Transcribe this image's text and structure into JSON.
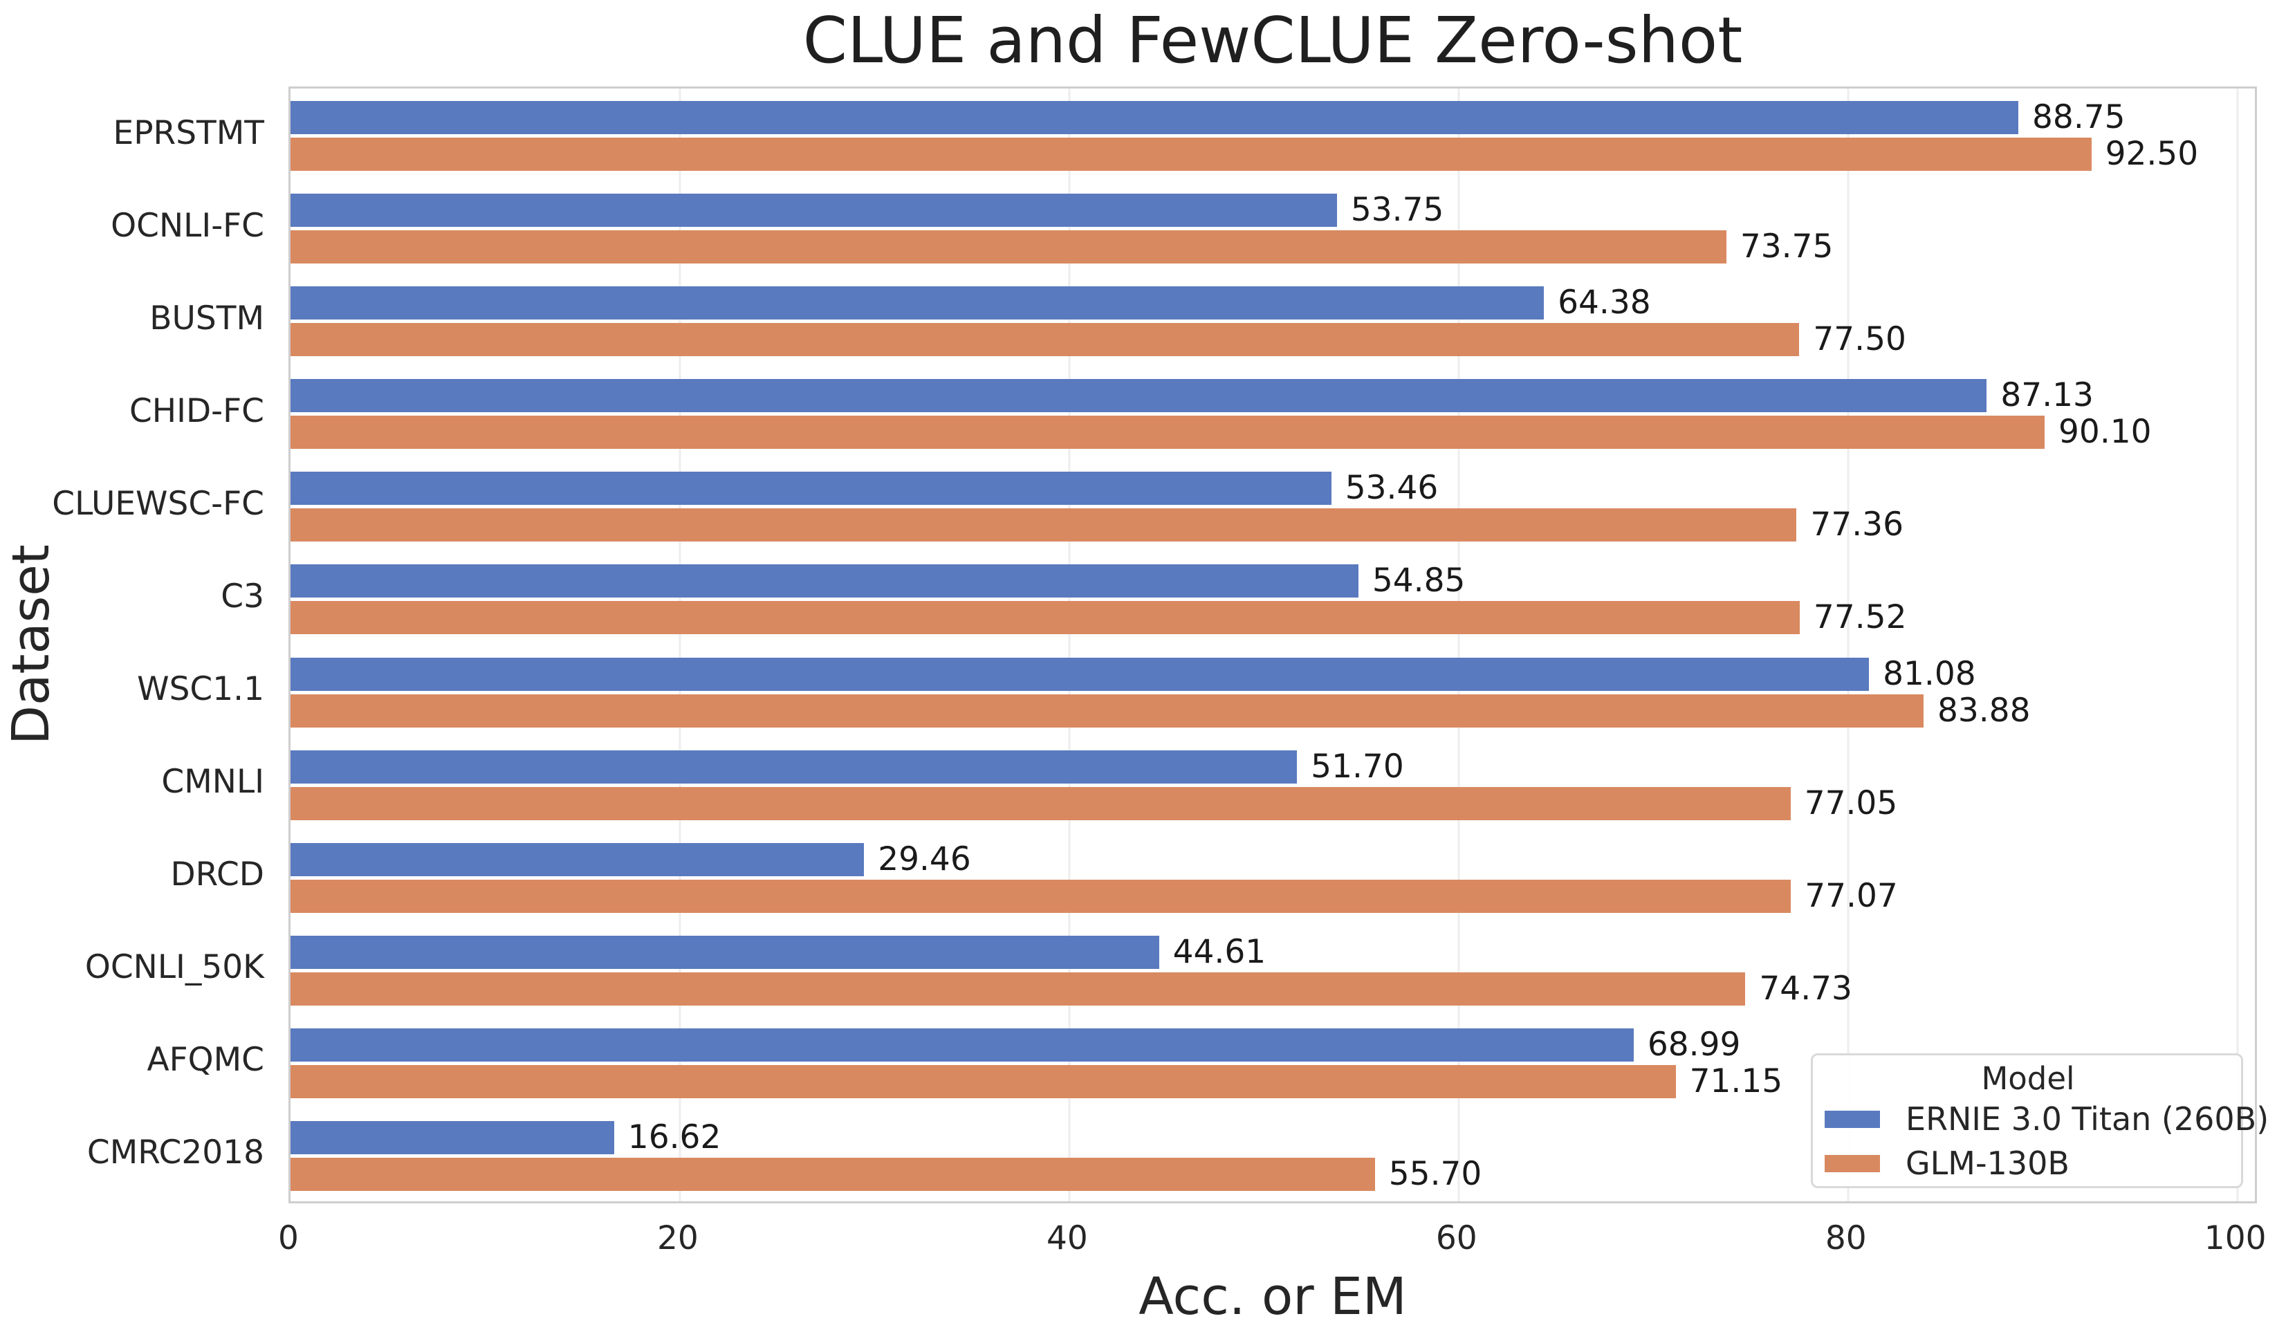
{
  "title": "CLUE and FewCLUE Zero-shot",
  "chart_data": {
    "type": "bar",
    "orientation": "horizontal",
    "title": "CLUE and FewCLUE Zero-shot",
    "xlabel": "Acc. or EM",
    "ylabel": "Dataset",
    "categories": [
      "EPRSTMT",
      "OCNLI-FC",
      "BUSTM",
      "CHID-FC",
      "CLUEWSC-FC",
      "C3",
      "WSC1.1",
      "CMNLI",
      "DRCD",
      "OCNLI_50K",
      "AFQMC",
      "CMRC2018"
    ],
    "series": [
      {
        "name": "ERNIE 3.0 Titan (260B)",
        "color": "#5a7abf",
        "values": [
          88.75,
          53.75,
          64.38,
          87.13,
          53.46,
          54.85,
          81.08,
          51.7,
          29.46,
          44.61,
          68.99,
          16.62
        ]
      },
      {
        "name": "GLM-130B",
        "color": "#d98960",
        "values": [
          92.5,
          73.75,
          77.5,
          90.1,
          77.36,
          77.52,
          83.88,
          77.05,
          77.07,
          74.73,
          71.15,
          55.7
        ]
      }
    ],
    "x_ticks": [
      0,
      20,
      40,
      60,
      80,
      100
    ],
    "xlim": [
      0,
      100.9
    ],
    "grid": "vertical",
    "gridline_color": "#ededed",
    "value_label_decimals": 2,
    "legend": {
      "title": "Model",
      "position": "lower right"
    }
  }
}
